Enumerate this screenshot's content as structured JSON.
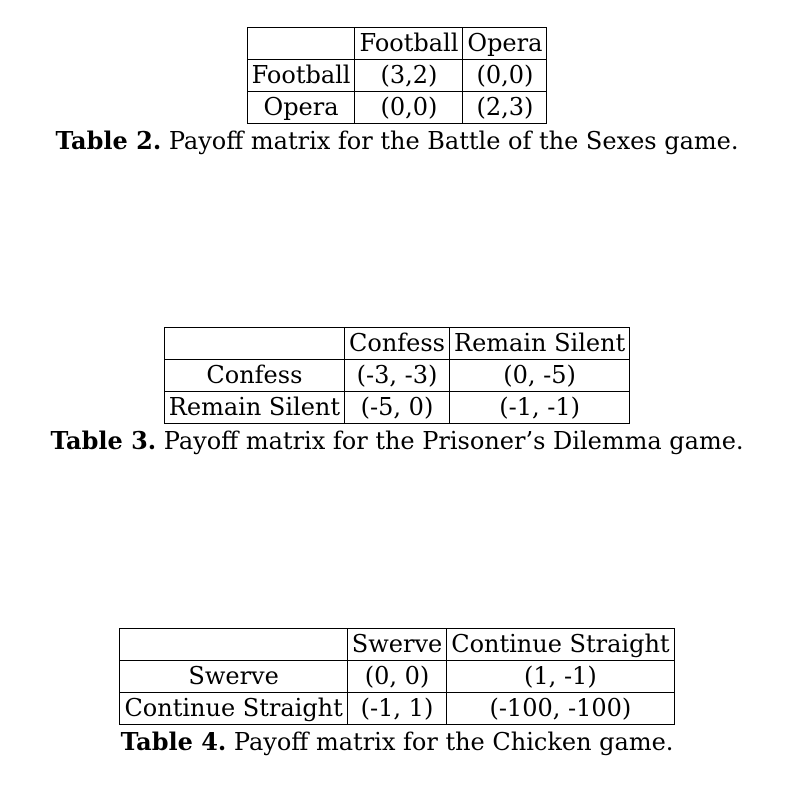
{
  "tables": [
    {
      "columns": [
        "",
        "Football",
        "Opera"
      ],
      "rows": [
        [
          "Football",
          "(3,2)",
          "(0,0)"
        ],
        [
          "Opera",
          "(0,0)",
          "(2,3)"
        ]
      ],
      "caption_label": "Table 2.",
      "caption_text": "Payoff matrix for the Battle of the Sexes game."
    },
    {
      "columns": [
        "",
        "Confess",
        "Remain Silent"
      ],
      "rows": [
        [
          "Confess",
          "(-3, -3)",
          "(0, -5)"
        ],
        [
          "Remain Silent",
          "(-5, 0)",
          "(-1, -1)"
        ]
      ],
      "caption_label": "Table 3.",
      "caption_text": "Payoff matrix for the Prisoner’s Dilemma game."
    },
    {
      "columns": [
        "",
        "Swerve",
        "Continue Straight"
      ],
      "rows": [
        [
          "Swerve",
          "(0, 0)",
          "(1, -1)"
        ],
        [
          "Continue Straight",
          "(-1, 1)",
          "(-100, -100)"
        ]
      ],
      "caption_label": "Table 4.",
      "caption_text": "Payoff matrix for the Chicken game."
    }
  ]
}
